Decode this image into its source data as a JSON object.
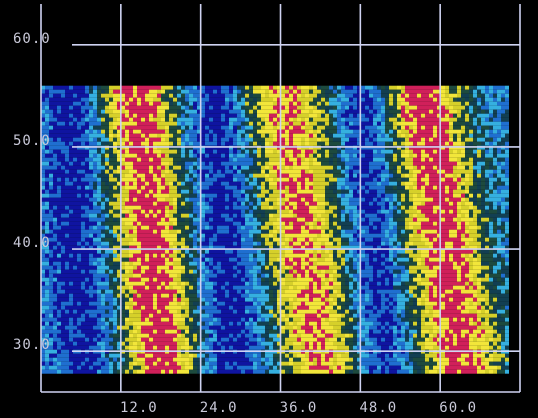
{
  "chart_data": {
    "type": "heatmap",
    "title": "",
    "xlabel": "",
    "ylabel": "",
    "x_ticks": [
      "12.0",
      "24.0",
      "36.0",
      "48.0",
      "60.0"
    ],
    "x_tick_values": [
      12,
      24,
      36,
      48,
      60
    ],
    "y_ticks": [
      "30.0",
      "40.0",
      "50.0",
      "60.0"
    ],
    "y_tick_values": [
      30,
      40,
      50,
      60
    ],
    "xlim": [
      0,
      72
    ],
    "ylim": [
      26,
      64
    ],
    "data_extent": {
      "x": [
        0,
        70
      ],
      "y": [
        28,
        56
      ]
    },
    "grid": true,
    "legend": "none",
    "colormap": [
      "#0f14a0",
      "#1f6fd0",
      "#35b0e0",
      "#123f52",
      "#1d4a3e",
      "#d6d02a",
      "#f2e63a",
      "#d0205a"
    ],
    "bands": [
      {
        "x_bottom": 18,
        "x_top": 14,
        "width": 5.5,
        "intensity": 1.0
      },
      {
        "x_bottom": 42,
        "x_top": 36,
        "width": 6.5,
        "intensity": 0.85
      },
      {
        "x_bottom": 63,
        "x_top": 57,
        "width": 6.0,
        "intensity": 1.0
      }
    ],
    "low_bands": [
      {
        "x_bottom": 6,
        "x_top": 4,
        "width": 4
      },
      {
        "x_bottom": 29,
        "x_top": 26,
        "width": 4.5
      },
      {
        "x_bottom": 51,
        "x_top": 48,
        "width": 4
      }
    ]
  }
}
